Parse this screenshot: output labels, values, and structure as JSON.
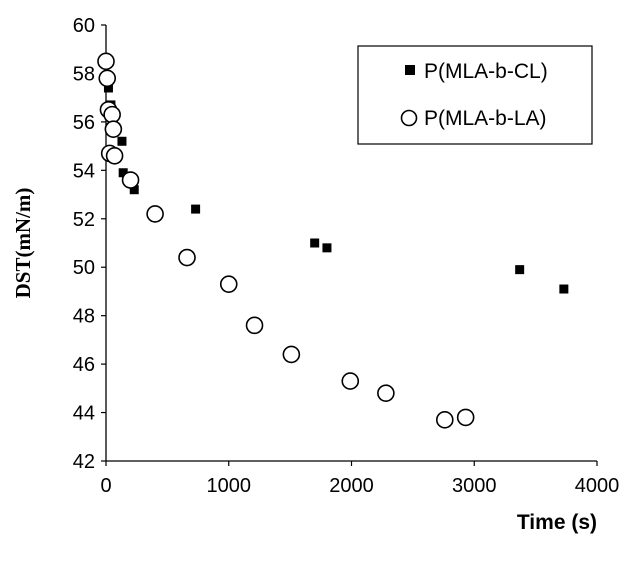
{
  "chart_data": {
    "type": "scatter",
    "xlabel": "Time (s)",
    "ylabel": "DST(mN/m)",
    "xlim": [
      0,
      4000
    ],
    "ylim": [
      42,
      60
    ],
    "xticks": [
      "0",
      "1000",
      "2000",
      "3000",
      "4000"
    ],
    "yticks": [
      "42",
      "44",
      "46",
      "48",
      "50",
      "52",
      "54",
      "56",
      "58",
      "60"
    ],
    "grid": false,
    "legend_position": "top-right",
    "series": [
      {
        "name": "P(MLA-b-CL)",
        "marker": "square",
        "color": "#000000",
        "points": [
          {
            "x": 20,
            "y": 57.4
          },
          {
            "x": 40,
            "y": 56.7
          },
          {
            "x": 60,
            "y": 56.1
          },
          {
            "x": 130,
            "y": 55.2
          },
          {
            "x": 140,
            "y": 53.9
          },
          {
            "x": 230,
            "y": 53.2
          },
          {
            "x": 730,
            "y": 52.4
          },
          {
            "x": 1700,
            "y": 51.0
          },
          {
            "x": 1800,
            "y": 50.8
          },
          {
            "x": 3370,
            "y": 49.9
          },
          {
            "x": 3730,
            "y": 49.1
          }
        ]
      },
      {
        "name": "P(MLA-b-LA)",
        "marker": "circle",
        "color": "#000000",
        "points": [
          {
            "x": 0,
            "y": 58.5
          },
          {
            "x": 10,
            "y": 57.8
          },
          {
            "x": 20,
            "y": 56.5
          },
          {
            "x": 50,
            "y": 56.3
          },
          {
            "x": 30,
            "y": 54.7
          },
          {
            "x": 60,
            "y": 55.7
          },
          {
            "x": 70,
            "y": 54.6
          },
          {
            "x": 200,
            "y": 53.6
          },
          {
            "x": 400,
            "y": 52.2
          },
          {
            "x": 660,
            "y": 50.4
          },
          {
            "x": 1000,
            "y": 49.3
          },
          {
            "x": 1210,
            "y": 47.6
          },
          {
            "x": 1510,
            "y": 46.4
          },
          {
            "x": 1990,
            "y": 45.3
          },
          {
            "x": 2280,
            "y": 44.8
          },
          {
            "x": 2760,
            "y": 43.7
          },
          {
            "x": 2930,
            "y": 43.8
          }
        ]
      }
    ]
  }
}
